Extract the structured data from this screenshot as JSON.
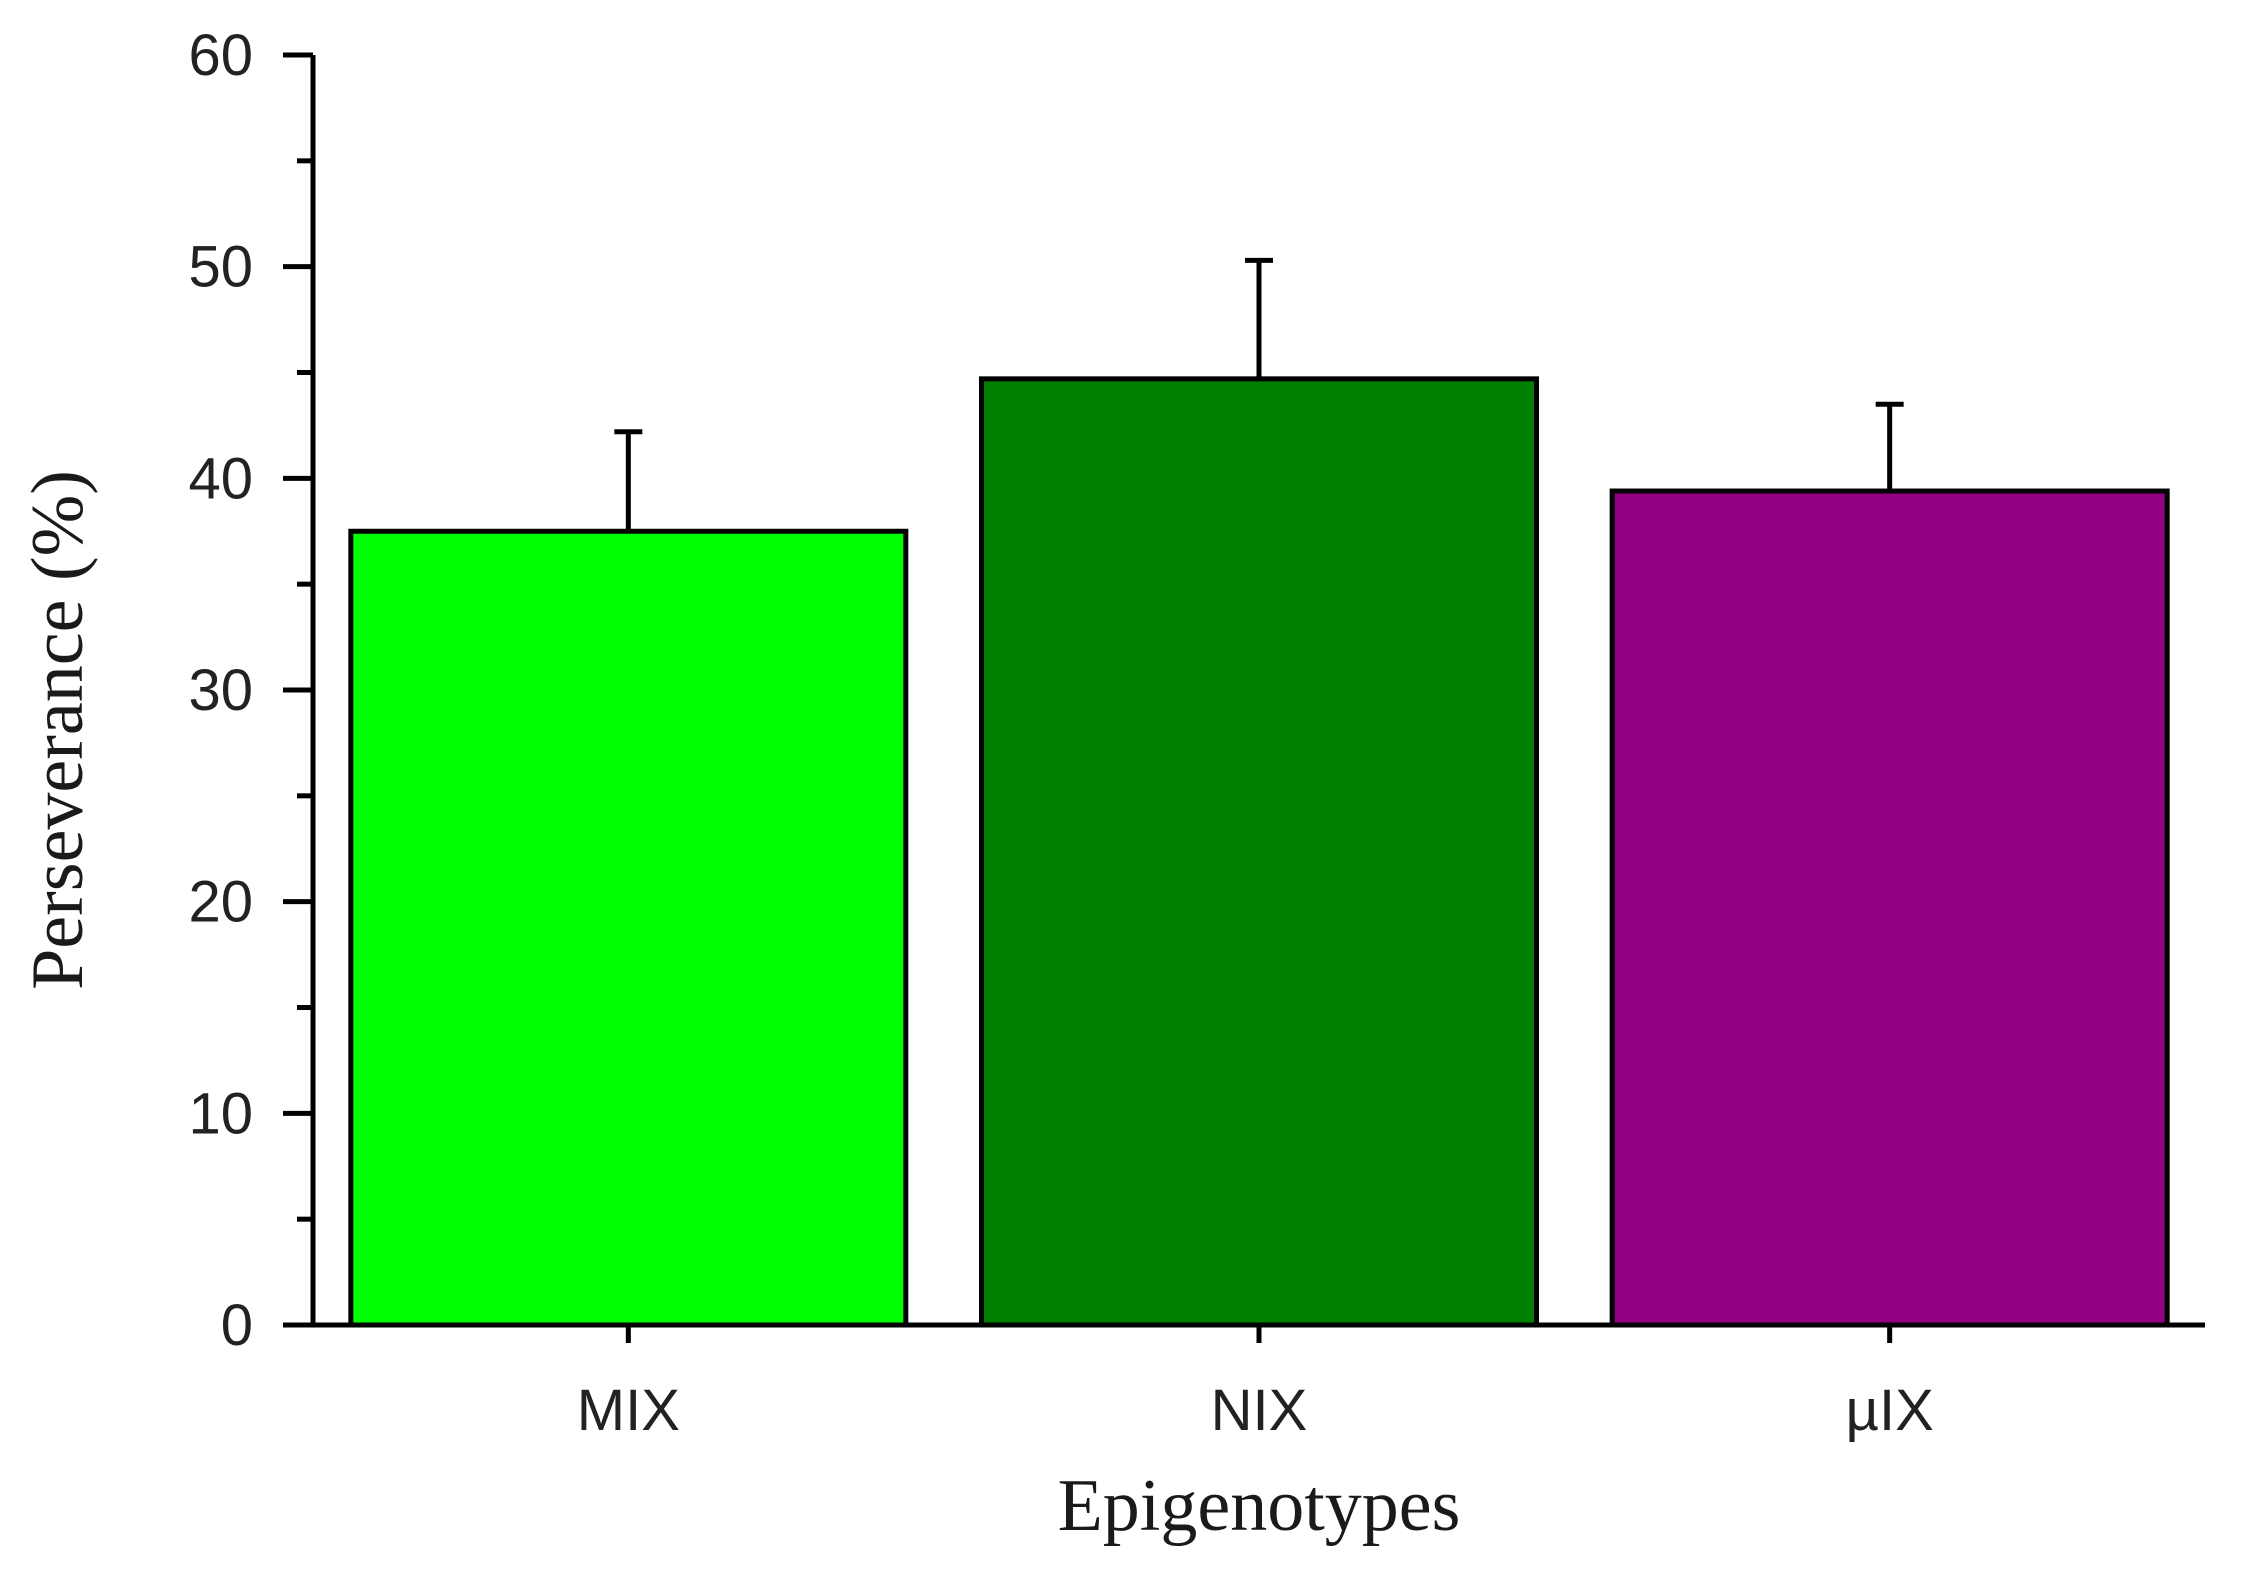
{
  "chart_data": {
    "type": "bar",
    "title": "",
    "xlabel": "Epigenotypes",
    "ylabel": "Perseverance (%)",
    "ylim": [
      0,
      60
    ],
    "yticks": [
      "0",
      "10",
      "20",
      "30",
      "40",
      "50",
      "60"
    ],
    "minor_tick_step": 5,
    "grid": false,
    "legend": "none",
    "categories": [
      "MIX",
      "NIX",
      "µIX"
    ],
    "values": [
      37.5,
      44.7,
      39.4
    ],
    "errors": [
      4.7,
      5.6,
      4.1
    ],
    "colors": [
      "#00ff00",
      "#008000",
      "#910080"
    ],
    "error_bar_direction": "upper"
  }
}
